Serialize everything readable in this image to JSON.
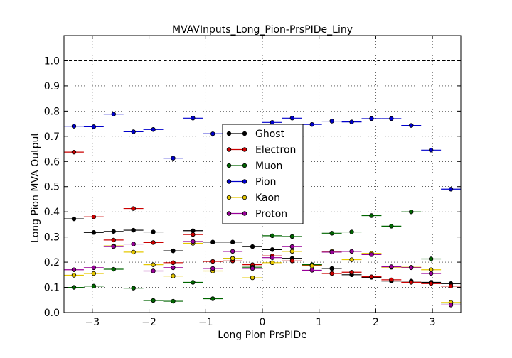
{
  "chart_data": {
    "type": "scatter",
    "title": "MVAVInputs_Long_Pion-PrsPIDe_Liny",
    "xlabel": "Long Pion PrsPIDe",
    "ylabel": "Long Pion MVA Output",
    "xlim": [
      -3.5,
      3.5
    ],
    "ylim": [
      0.0,
      1.1
    ],
    "xticks": [
      -3,
      -2,
      -1,
      0,
      1,
      2,
      3
    ],
    "yticks": [
      0.0,
      0.1,
      0.2,
      0.3,
      0.4,
      0.5,
      0.6,
      0.7,
      0.8,
      0.9,
      1.0
    ],
    "xtick_labels": [
      "−3",
      "−2",
      "−1",
      "0",
      "1",
      "2",
      "3"
    ],
    "ytick_labels": [
      "0.0",
      "0.1",
      "0.2",
      "0.3",
      "0.4",
      "0.5",
      "0.6",
      "0.7",
      "0.8",
      "0.9",
      "1.0"
    ],
    "grid": true,
    "reference_line": {
      "y": 1.0,
      "style": "dashed"
    },
    "legend_position": "center",
    "x_bin_half_width": 0.175,
    "x": [
      -3.325,
      -2.975,
      -2.625,
      -2.275,
      -1.925,
      -1.575,
      -1.225,
      -0.875,
      -0.525,
      -0.175,
      0.175,
      0.525,
      0.875,
      1.225,
      1.575,
      1.925,
      2.275,
      2.625,
      2.975,
      3.325
    ],
    "series": [
      {
        "name": "Ghost",
        "color": "#000000",
        "values": [
          0.372,
          0.318,
          0.322,
          0.327,
          0.32,
          0.245,
          0.325,
          0.28,
          0.28,
          0.262,
          0.25,
          0.215,
          0.19,
          0.175,
          0.15,
          0.14,
          0.125,
          0.125,
          0.12,
          0.115
        ]
      },
      {
        "name": "Electron",
        "color": "#cc0000",
        "values": [
          0.637,
          0.38,
          0.288,
          0.413,
          0.278,
          0.198,
          0.31,
          0.203,
          0.205,
          0.19,
          0.225,
          0.205,
          0.188,
          0.155,
          0.16,
          0.142,
          0.13,
          0.12,
          0.115,
          0.105
        ]
      },
      {
        "name": "Muon",
        "color": "#006600",
        "values": [
          0.1,
          0.105,
          0.172,
          0.097,
          0.048,
          0.045,
          0.12,
          0.055,
          0.215,
          0.18,
          0.305,
          0.302,
          0.19,
          0.315,
          0.32,
          0.385,
          0.343,
          0.4,
          0.213,
          0.038
        ]
      },
      {
        "name": "Pion",
        "color": "#0000cc",
        "values": [
          0.74,
          0.738,
          0.788,
          0.718,
          0.727,
          0.613,
          0.772,
          0.71,
          0.74,
          0.713,
          0.755,
          0.772,
          0.747,
          0.76,
          0.757,
          0.77,
          0.77,
          0.743,
          0.645,
          0.49
        ]
      },
      {
        "name": "Kaon",
        "color": "#e6c800",
        "values": [
          0.148,
          0.155,
          0.265,
          0.24,
          0.19,
          0.145,
          0.275,
          0.165,
          0.215,
          0.138,
          0.198,
          0.243,
          0.185,
          0.243,
          0.21,
          0.235,
          0.18,
          0.18,
          0.17,
          0.04
        ]
      },
      {
        "name": "Proton",
        "color": "#990099",
        "values": [
          0.17,
          0.178,
          0.262,
          0.272,
          0.165,
          0.178,
          0.282,
          0.175,
          0.243,
          0.175,
          0.218,
          0.262,
          0.168,
          0.24,
          0.243,
          0.23,
          0.182,
          0.178,
          0.155,
          0.03
        ]
      }
    ]
  }
}
